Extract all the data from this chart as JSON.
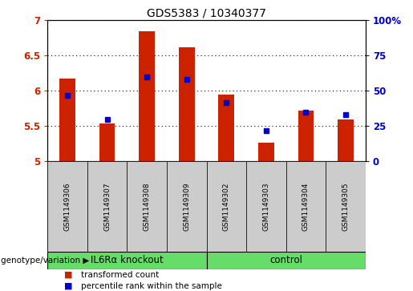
{
  "title": "GDS5383 / 10340377",
  "samples": [
    "GSM1149306",
    "GSM1149307",
    "GSM1149308",
    "GSM1149309",
    "GSM1149302",
    "GSM1149303",
    "GSM1149304",
    "GSM1149305"
  ],
  "transformed_count": [
    6.17,
    5.54,
    6.84,
    6.62,
    5.95,
    5.27,
    5.72,
    5.6
  ],
  "percentile_rank": [
    47,
    30,
    60,
    58,
    42,
    22,
    35,
    33
  ],
  "ylim_left": [
    5.0,
    7.0
  ],
  "ylim_right": [
    0,
    100
  ],
  "yticks_left": [
    5.0,
    5.5,
    6.0,
    6.5,
    7.0
  ],
  "yticks_right": [
    0,
    25,
    50,
    75,
    100
  ],
  "bar_color": "#cc2200",
  "dot_color": "#0000cc",
  "bar_width": 0.4,
  "groups": [
    {
      "label": "IL6Rα knockout",
      "start": 0,
      "end": 4,
      "color": "#66dd66"
    },
    {
      "label": "control",
      "start": 4,
      "end": 8,
      "color": "#66dd66"
    }
  ],
  "group_row_label": "genotype/variation",
  "legend_items": [
    {
      "color": "#cc2200",
      "label": "transformed count"
    },
    {
      "color": "#0000cc",
      "label": "percentile rank within the sample"
    }
  ],
  "grid_color": "black",
  "grid_style": "dotted",
  "sample_box_color": "#cccccc",
  "plot_bg_color": "#ffffff"
}
